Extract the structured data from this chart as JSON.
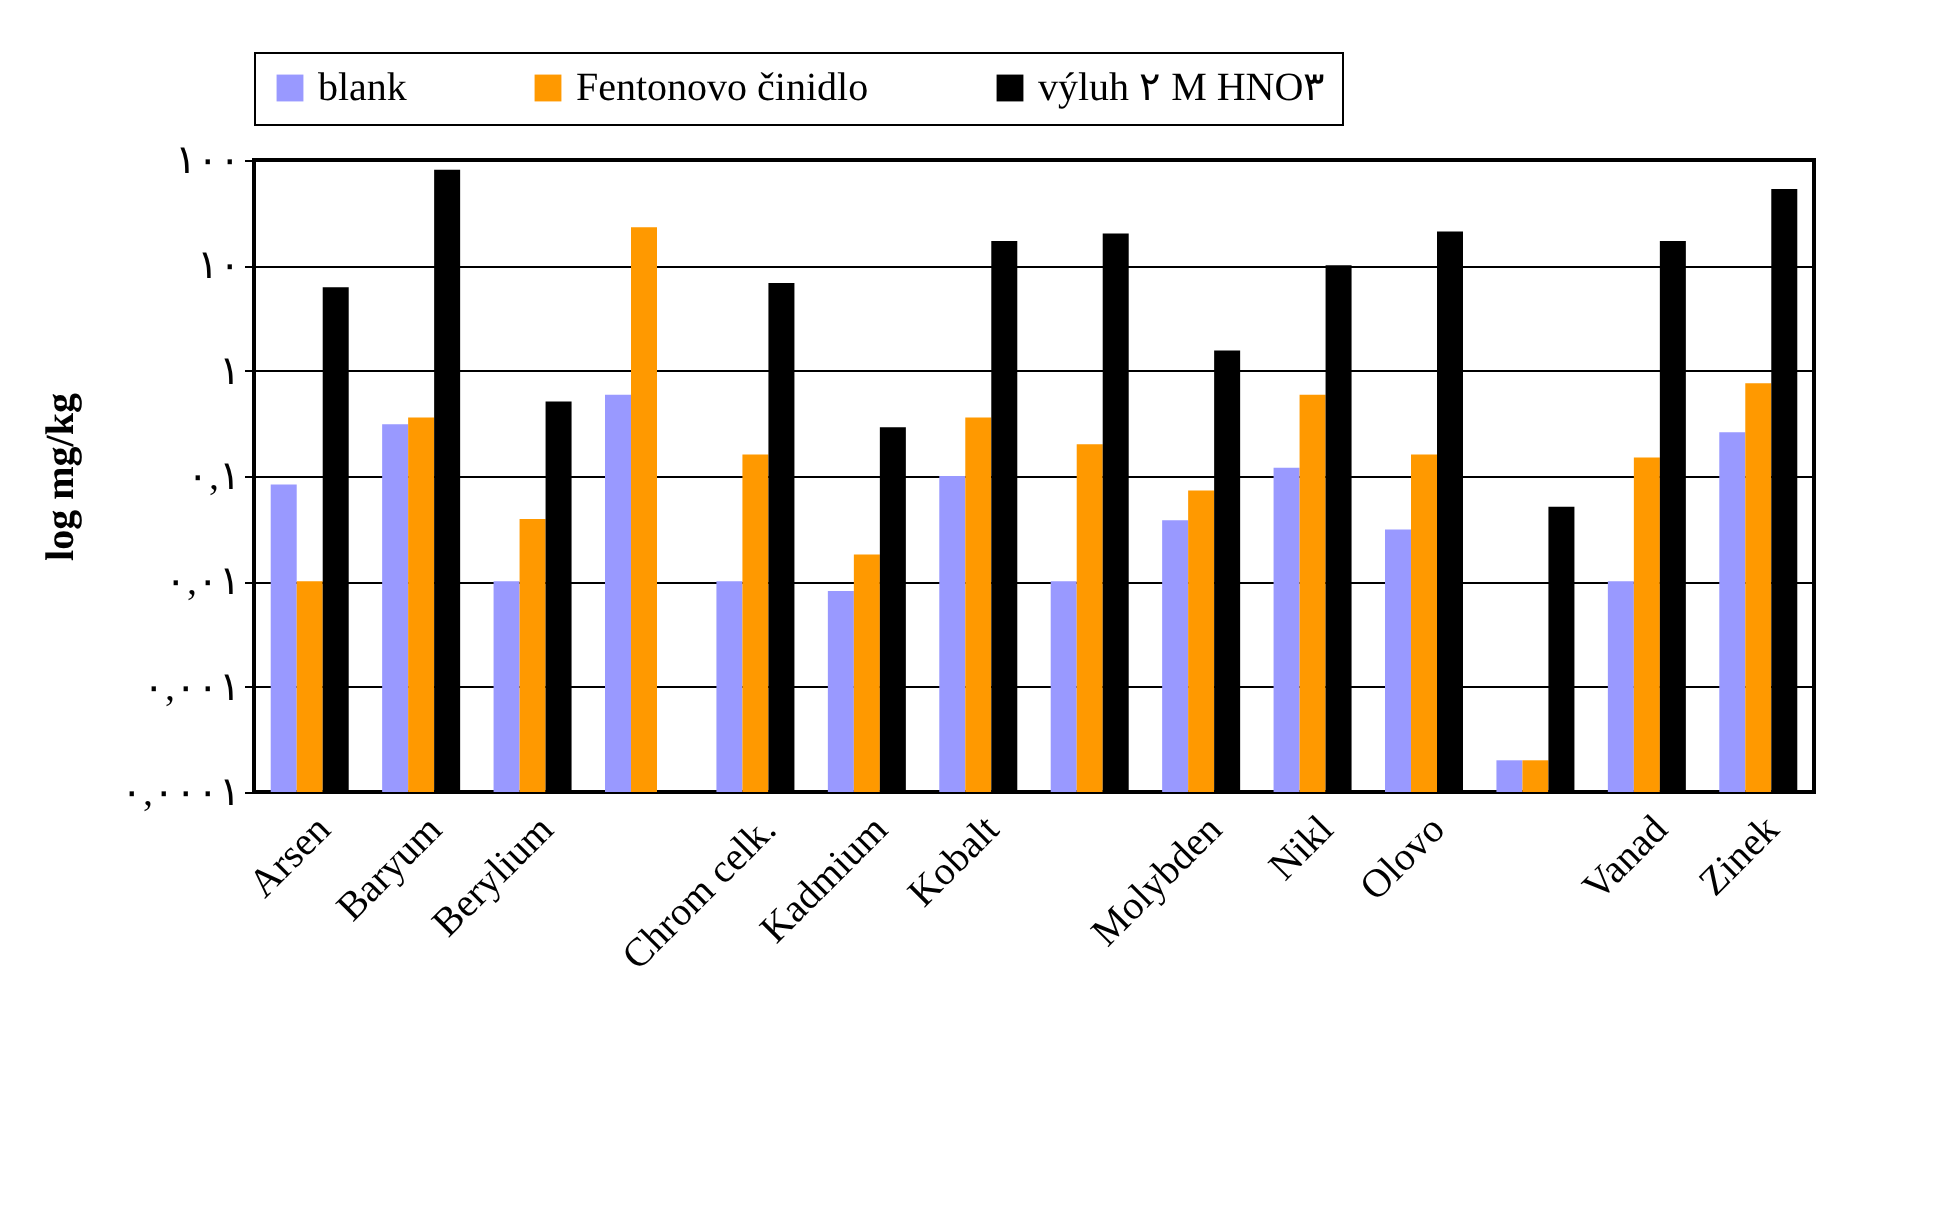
{
  "chart_data": {
    "type": "bar",
    "ylabel": "log mg/kg",
    "log": true,
    "grid": "y",
    "legend": "top",
    "categories": [
      "Arsen",
      "Baryum",
      "Berylium",
      null,
      "Chrom celk.",
      "Kadmium",
      "Kobalt",
      null,
      "Molybden",
      "Nikl",
      "Olovo",
      null,
      "Vanad",
      "Zinek"
    ],
    "ylim": [
      0.0001,
      100
    ],
    "yticks": [
      {
        "value": 0.0001,
        "label": "٠,٠٠٠١"
      },
      {
        "value": 0.001,
        "label": "٠,٠٠١"
      },
      {
        "value": 0.01,
        "label": "٠,٠١"
      },
      {
        "value": 0.1,
        "label": "٠,١"
      },
      {
        "value": 1,
        "label": "١"
      },
      {
        "value": 10,
        "label": "١٠"
      },
      {
        "value": 100,
        "label": "١٠٠"
      }
    ],
    "series": [
      {
        "name": "blank",
        "color": "#9999ff",
        "values": [
          0.083,
          0.31,
          0.01,
          0.59,
          0.01,
          0.0081,
          0.1,
          0.01,
          0.038,
          0.12,
          0.031,
          0.0002,
          0.01,
          0.26
        ]
      },
      {
        "name": "Fentonovo činidlo",
        "color": "#ff9900",
        "values": [
          0.01,
          0.36,
          0.039,
          23,
          0.16,
          0.018,
          0.36,
          0.2,
          0.073,
          0.59,
          0.16,
          0.0002,
          0.15,
          0.76
        ]
      },
      {
        "name": "výluh ٢ M HNO٣",
        "color": "#000000",
        "values": [
          6.2,
          81,
          0.51,
          null,
          6.8,
          0.29,
          17,
          20,
          1.55,
          10,
          21,
          0.051,
          17,
          53
        ]
      }
    ]
  }
}
